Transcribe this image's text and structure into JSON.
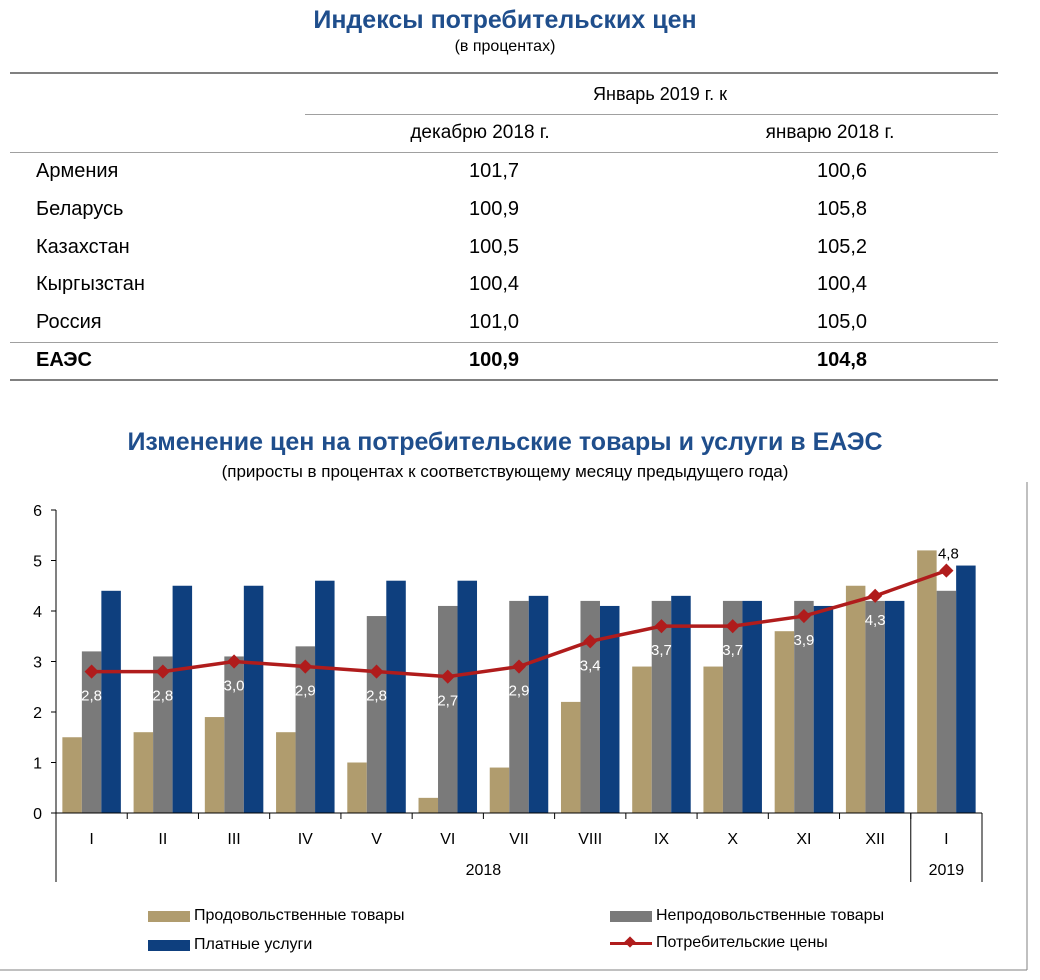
{
  "table": {
    "title": "Индексы потребительских цен",
    "subtitle": "(в процентах)",
    "header_group": "Январь 2019 г. к",
    "col1": "декабрю 2018 г.",
    "col2": "январю 2018 г.",
    "rows": [
      {
        "name": "Армения",
        "v1": "101,7",
        "v2": "100,6"
      },
      {
        "name": "Беларусь",
        "v1": "100,9",
        "v2": "105,8"
      },
      {
        "name": "Казахстан",
        "v1": "100,5",
        "v2": "105,2"
      },
      {
        "name": "Кыргызстан",
        "v1": "100,4",
        "v2": "100,4"
      },
      {
        "name": "Россия",
        "v1": "101,0",
        "v2": "105,0"
      }
    ],
    "total": {
      "name": "ЕАЭС",
      "v1": "100,9",
      "v2": "104,8"
    }
  },
  "chart_title": "Изменение цен на потребительские товары и услуги в ЕАЭС",
  "chart_subtitle": "(приросты в процентах к соответствующему месяцу предыдущего года)",
  "chart_data": {
    "type": "bar",
    "categories": [
      "I",
      "II",
      "III",
      "IV",
      "V",
      "VI",
      "VII",
      "VIII",
      "IX",
      "X",
      "XI",
      "XII",
      "I"
    ],
    "year_groups": [
      {
        "label": "2018",
        "count": 12
      },
      {
        "label": "2019",
        "count": 1
      }
    ],
    "ylim": [
      0,
      6
    ],
    "yticks": [
      0,
      1,
      2,
      3,
      4,
      5,
      6
    ],
    "grid": false,
    "legend_position": "bottom",
    "series": [
      {
        "name": "Продовольственные товары",
        "kind": "bar",
        "color": "#b09c6e",
        "values": [
          1.5,
          1.6,
          1.9,
          1.6,
          1.0,
          0.3,
          0.9,
          2.2,
          2.9,
          2.9,
          3.6,
          4.5,
          5.2
        ]
      },
      {
        "name": "Непродовольственные товары",
        "kind": "bar",
        "color": "#7a7a7a",
        "values": [
          3.2,
          3.1,
          3.1,
          3.3,
          3.9,
          4.1,
          4.2,
          4.2,
          4.2,
          4.2,
          4.2,
          4.2,
          4.4
        ]
      },
      {
        "name": "Платные услуги",
        "kind": "bar",
        "color": "#0e3f7e",
        "values": [
          4.4,
          4.5,
          4.5,
          4.6,
          4.6,
          4.6,
          4.3,
          4.1,
          4.3,
          4.2,
          4.1,
          4.2,
          4.9
        ]
      },
      {
        "name": "Потребительские цены",
        "kind": "line",
        "color": "#b01c1c",
        "values": [
          2.8,
          2.8,
          3.0,
          2.9,
          2.8,
          2.7,
          2.9,
          3.4,
          3.7,
          3.7,
          3.9,
          4.3,
          4.8
        ],
        "labels": [
          "2,8",
          "2,8",
          "3,0",
          "2,9",
          "2,8",
          "2,7",
          "2,9",
          "3,4",
          "3,7",
          "3,7",
          "3,9",
          "4,3",
          "4,8"
        ]
      }
    ]
  }
}
